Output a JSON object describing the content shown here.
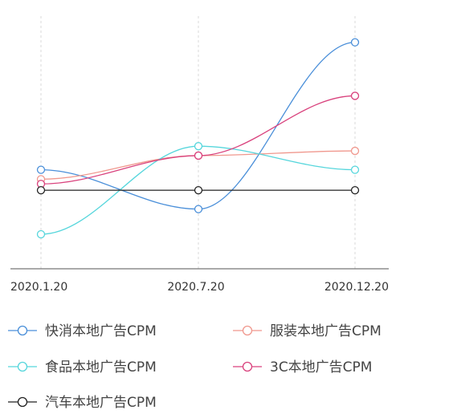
{
  "chart_data": {
    "type": "line",
    "x": [
      "2020.1.20",
      "2020.7.20",
      "2020.12.20"
    ],
    "grid": "vertical-dashed",
    "legend_position": "bottom",
    "y_axis": "hidden",
    "ylim": [
      -0.28,
      1.0
    ],
    "series": [
      {
        "name": "快消本地广告CPM",
        "color": "#4a8fd9",
        "values": [
          0.13,
          -0.12,
          0.94
        ]
      },
      {
        "name": "服装本地广告CPM",
        "color": "#f0988e",
        "values": [
          0.07,
          0.22,
          0.25
        ]
      },
      {
        "name": "食品本地广告CPM",
        "color": "#56d6dc",
        "values": [
          -0.28,
          0.28,
          0.13
        ]
      },
      {
        "name": "3C本地广告CPM",
        "color": "#d9427d",
        "values": [
          0.04,
          0.22,
          0.6
        ]
      },
      {
        "name": "汽车本地广告CPM",
        "color": "#222222",
        "values": [
          0.0,
          0.0,
          0.0
        ]
      }
    ]
  }
}
